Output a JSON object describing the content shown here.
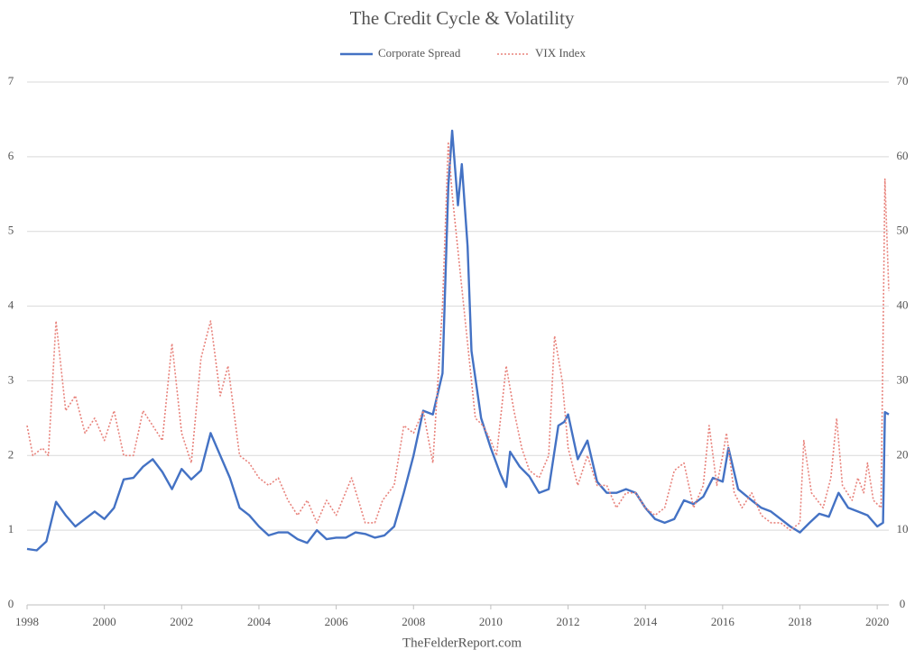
{
  "chart_data": {
    "type": "line",
    "title": "The Credit Cycle & Volatility",
    "source": "TheFelderReport.com",
    "xlim": [
      1998,
      2020.3
    ],
    "xticks": [
      1998,
      2000,
      2002,
      2004,
      2006,
      2008,
      2010,
      2012,
      2014,
      2016,
      2018,
      2020
    ],
    "ylim": [
      0,
      7
    ],
    "yticks": [
      0,
      1,
      2,
      3,
      4,
      5,
      6,
      7
    ],
    "y2lim": [
      0,
      70
    ],
    "y2ticks": [
      0,
      10,
      20,
      30,
      40,
      50,
      60,
      70
    ],
    "grid": true,
    "legend": "top",
    "series": [
      {
        "name": "Corporate Spread",
        "color": "#4472c4",
        "style": "solid",
        "x": [
          1998.0,
          1998.25,
          1998.5,
          1998.75,
          1999.0,
          1999.25,
          1999.5,
          1999.75,
          2000.0,
          2000.25,
          2000.5,
          2000.75,
          2001.0,
          2001.25,
          2001.5,
          2001.75,
          2002.0,
          2002.25,
          2002.5,
          2002.75,
          2003.0,
          2003.25,
          2003.5,
          2003.75,
          2004.0,
          2004.25,
          2004.5,
          2004.75,
          2005.0,
          2005.25,
          2005.5,
          2005.75,
          2006.0,
          2006.25,
          2006.5,
          2006.75,
          2007.0,
          2007.25,
          2007.5,
          2007.75,
          2008.0,
          2008.25,
          2008.5,
          2008.75,
          2008.9,
          2009.0,
          2009.15,
          2009.25,
          2009.4,
          2009.5,
          2009.75,
          2010.0,
          2010.25,
          2010.4,
          2010.5,
          2010.75,
          2011.0,
          2011.25,
          2011.5,
          2011.75,
          2011.9,
          2012.0,
          2012.25,
          2012.5,
          2012.75,
          2013.0,
          2013.25,
          2013.5,
          2013.75,
          2014.0,
          2014.25,
          2014.5,
          2014.75,
          2015.0,
          2015.25,
          2015.5,
          2015.75,
          2016.0,
          2016.15,
          2016.4,
          2016.75,
          2017.0,
          2017.25,
          2017.5,
          2017.75,
          2018.0,
          2018.25,
          2018.5,
          2018.75,
          2019.0,
          2019.25,
          2019.5,
          2019.75,
          2020.0,
          2020.15,
          2020.2,
          2020.3
        ],
        "values": [
          0.75,
          0.73,
          0.85,
          1.38,
          1.2,
          1.05,
          1.15,
          1.25,
          1.15,
          1.3,
          1.68,
          1.7,
          1.85,
          1.95,
          1.78,
          1.55,
          1.82,
          1.68,
          1.8,
          2.3,
          2.0,
          1.7,
          1.3,
          1.2,
          1.05,
          0.93,
          0.97,
          0.97,
          0.88,
          0.83,
          1.0,
          0.88,
          0.9,
          0.9,
          0.97,
          0.95,
          0.9,
          0.93,
          1.05,
          1.5,
          2.0,
          2.6,
          2.55,
          3.1,
          5.6,
          6.35,
          5.35,
          5.9,
          4.8,
          3.4,
          2.5,
          2.1,
          1.75,
          1.58,
          2.05,
          1.85,
          1.72,
          1.5,
          1.55,
          2.4,
          2.45,
          2.55,
          1.95,
          2.2,
          1.65,
          1.5,
          1.5,
          1.55,
          1.5,
          1.3,
          1.15,
          1.1,
          1.15,
          1.4,
          1.35,
          1.45,
          1.7,
          1.65,
          2.1,
          1.55,
          1.4,
          1.3,
          1.25,
          1.15,
          1.05,
          0.97,
          1.1,
          1.22,
          1.18,
          1.5,
          1.3,
          1.25,
          1.2,
          1.05,
          1.1,
          2.58,
          2.55
        ]
      },
      {
        "name": "VIX Index",
        "color": "#e8837c",
        "style": "dotted",
        "axis": "y2",
        "x": [
          1998.0,
          1998.15,
          1998.4,
          1998.55,
          1998.75,
          1999.0,
          1999.25,
          1999.5,
          1999.75,
          2000.0,
          2000.25,
          2000.5,
          2000.75,
          2001.0,
          2001.25,
          2001.5,
          2001.75,
          2002.0,
          2002.25,
          2002.5,
          2002.75,
          2003.0,
          2003.2,
          2003.5,
          2003.75,
          2004.0,
          2004.25,
          2004.5,
          2004.75,
          2005.0,
          2005.25,
          2005.5,
          2005.75,
          2006.0,
          2006.4,
          2006.75,
          2007.0,
          2007.2,
          2007.5,
          2007.75,
          2008.0,
          2008.25,
          2008.5,
          2008.75,
          2008.9,
          2009.0,
          2009.2,
          2009.4,
          2009.6,
          2009.8,
          2010.0,
          2010.15,
          2010.4,
          2010.6,
          2010.8,
          2011.0,
          2011.25,
          2011.5,
          2011.65,
          2011.85,
          2012.0,
          2012.25,
          2012.5,
          2012.75,
          2013.0,
          2013.25,
          2013.5,
          2013.75,
          2014.0,
          2014.25,
          2014.5,
          2014.75,
          2015.0,
          2015.25,
          2015.5,
          2015.65,
          2015.85,
          2016.0,
          2016.1,
          2016.3,
          2016.5,
          2016.75,
          2017.0,
          2017.25,
          2017.5,
          2017.75,
          2018.0,
          2018.1,
          2018.3,
          2018.6,
          2018.8,
          2018.95,
          2019.1,
          2019.35,
          2019.5,
          2019.65,
          2019.75,
          2019.9,
          2020.1,
          2020.2,
          2020.3
        ],
        "values": [
          24,
          20,
          21,
          20,
          38,
          26,
          28,
          23,
          25,
          22,
          26,
          20,
          20,
          26,
          24,
          22,
          35,
          23,
          19,
          33,
          38,
          28,
          32,
          20,
          19,
          17,
          16,
          17,
          14,
          12,
          14,
          11,
          14,
          12,
          17,
          11,
          11,
          14,
          16,
          24,
          23,
          26,
          19,
          40,
          62,
          55,
          45,
          35,
          25,
          24,
          22,
          20,
          32,
          26,
          21,
          18,
          17,
          20,
          36,
          30,
          21,
          16,
          20,
          16,
          16,
          13,
          15,
          15,
          13,
          12,
          13,
          18,
          19,
          13,
          16,
          24,
          16,
          20,
          23,
          15,
          13,
          15,
          12,
          11,
          11,
          10,
          11,
          22,
          15,
          13,
          17,
          25,
          16,
          14,
          17,
          15,
          19,
          14,
          13,
          57,
          42
        ]
      }
    ]
  }
}
